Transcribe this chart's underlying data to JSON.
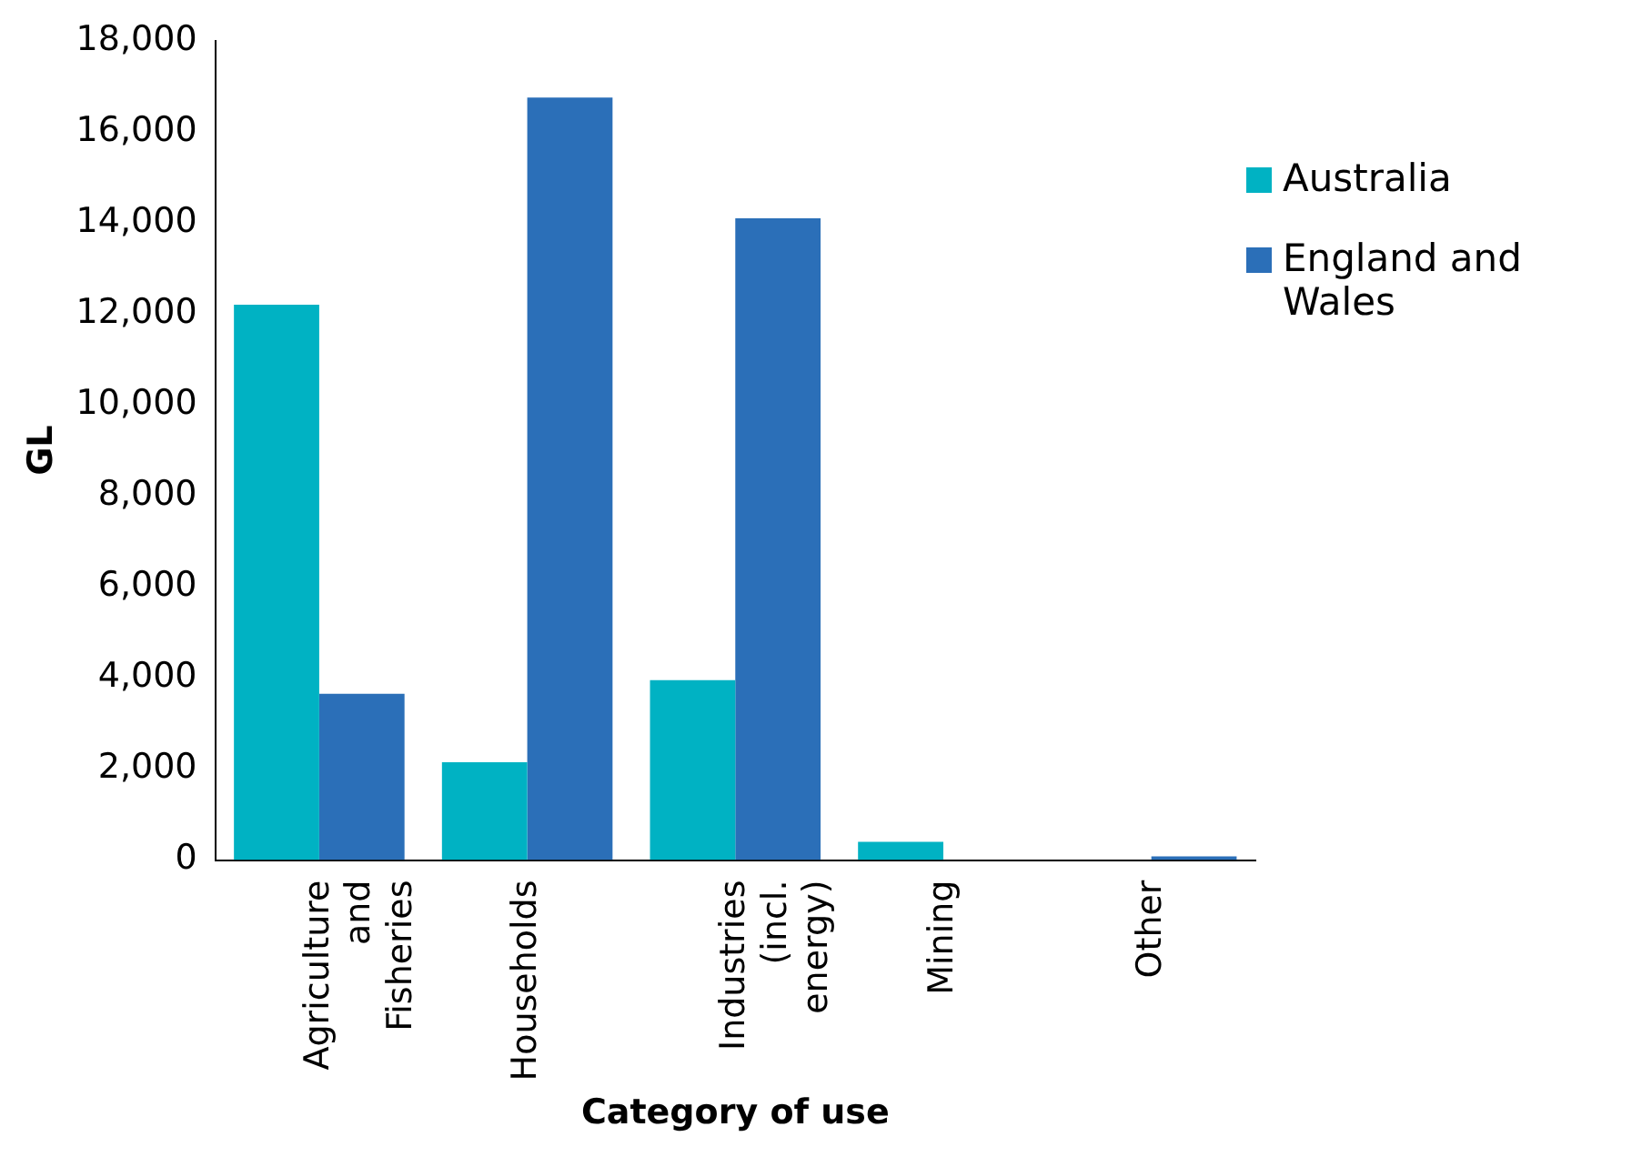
{
  "chart_data": {
    "type": "bar",
    "xlabel": "Category of use",
    "ylabel": "GL",
    "categories": [
      "Agriculture and Fisheries",
      "Households",
      "Industries (incl. energy)",
      "Mining",
      "Other"
    ],
    "series": [
      {
        "name": "Australia",
        "color": "#00b2c3",
        "values": [
          12200,
          2150,
          3950,
          400,
          0
        ]
      },
      {
        "name": "England and Wales",
        "color": "#2b6fb8",
        "values": [
          3650,
          16750,
          14100,
          0,
          80
        ]
      }
    ],
    "ylim": [
      0,
      18000
    ],
    "yticks": [
      {
        "value": 0,
        "label": "0"
      },
      {
        "value": 2000,
        "label": "2,000"
      },
      {
        "value": 4000,
        "label": "4,000"
      },
      {
        "value": 6000,
        "label": "6,000"
      },
      {
        "value": 8000,
        "label": "8,000"
      },
      {
        "value": 10000,
        "label": "10,000"
      },
      {
        "value": 12000,
        "label": "12,000"
      },
      {
        "value": 14000,
        "label": "14,000"
      },
      {
        "value": 16000,
        "label": "16,000"
      },
      {
        "value": 18000,
        "label": "18,000"
      }
    ],
    "grid": false,
    "legend": "top right"
  }
}
